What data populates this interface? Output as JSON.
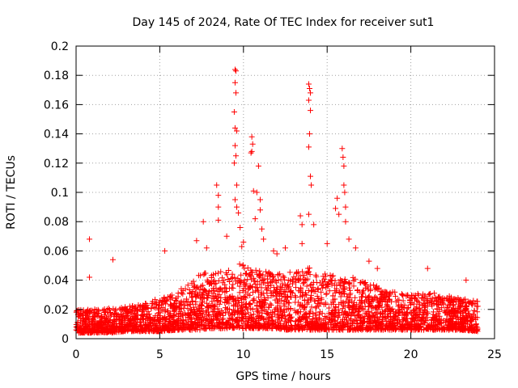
{
  "chart_data": {
    "type": "scatter",
    "title": "Day 145 of 2024, Rate Of TEC Index for receiver sut1",
    "xlabel": "GPS time / hours",
    "ylabel": "ROTI / TECUs",
    "xlim": [
      0,
      25
    ],
    "ylim": [
      0,
      0.2
    ],
    "xticks": [
      0,
      5,
      10,
      15,
      20,
      25
    ],
    "xtick_labels": [
      "0",
      "5",
      "10",
      "15",
      "20",
      "25"
    ],
    "yticks": [
      0,
      0.02,
      0.04,
      0.06,
      0.08,
      0.1,
      0.12,
      0.14,
      0.16,
      0.18,
      0.2
    ],
    "ytick_labels": [
      "0",
      "0.02",
      "0.04",
      "0.06",
      "0.08",
      "0.1",
      "0.12",
      "0.14",
      "0.16",
      "0.18",
      "0.2"
    ],
    "grid": true,
    "marker": "+",
    "series": [
      {
        "name": "sut1",
        "color": "#ff0000",
        "background_envelope": {
          "x": [
            0,
            1,
            2,
            3,
            4,
            5,
            6,
            7,
            7.5,
            8,
            8.5,
            9,
            9.5,
            10,
            10.5,
            11,
            11.5,
            12,
            12.5,
            13,
            13.5,
            14,
            14.5,
            15,
            15.5,
            16,
            16.5,
            17,
            17.5,
            18,
            19,
            20,
            21,
            22,
            23,
            24
          ],
          "lower": [
            0.004,
            0.004,
            0.004,
            0.005,
            0.005,
            0.005,
            0.006,
            0.006,
            0.006,
            0.007,
            0.007,
            0.007,
            0.007,
            0.007,
            0.007,
            0.007,
            0.007,
            0.007,
            0.006,
            0.006,
            0.006,
            0.006,
            0.006,
            0.006,
            0.006,
            0.006,
            0.006,
            0.006,
            0.006,
            0.006,
            0.006,
            0.006,
            0.006,
            0.006,
            0.006,
            0.005
          ],
          "upper": [
            0.02,
            0.02,
            0.021,
            0.022,
            0.024,
            0.028,
            0.033,
            0.04,
            0.045,
            0.046,
            0.046,
            0.046,
            0.05,
            0.052,
            0.05,
            0.048,
            0.046,
            0.044,
            0.045,
            0.046,
            0.046,
            0.05,
            0.045,
            0.044,
            0.043,
            0.044,
            0.042,
            0.04,
            0.038,
            0.036,
            0.032,
            0.03,
            0.032,
            0.03,
            0.028,
            0.026
          ]
        },
        "outliers": [
          {
            "x": 0.8,
            "y": 0.068
          },
          {
            "x": 0.8,
            "y": 0.042
          },
          {
            "x": 2.2,
            "y": 0.054
          },
          {
            "x": 5.3,
            "y": 0.06
          },
          {
            "x": 7.2,
            "y": 0.067
          },
          {
            "x": 7.6,
            "y": 0.08
          },
          {
            "x": 8.4,
            "y": 0.105
          },
          {
            "x": 8.5,
            "y": 0.098
          },
          {
            "x": 8.5,
            "y": 0.09
          },
          {
            "x": 8.5,
            "y": 0.081
          },
          {
            "x": 9.0,
            "y": 0.07
          },
          {
            "x": 9.5,
            "y": 0.184
          },
          {
            "x": 9.55,
            "y": 0.183
          },
          {
            "x": 9.5,
            "y": 0.175
          },
          {
            "x": 9.55,
            "y": 0.168
          },
          {
            "x": 9.45,
            "y": 0.155
          },
          {
            "x": 9.5,
            "y": 0.144
          },
          {
            "x": 9.6,
            "y": 0.142
          },
          {
            "x": 9.5,
            "y": 0.132
          },
          {
            "x": 9.55,
            "y": 0.125
          },
          {
            "x": 9.45,
            "y": 0.12
          },
          {
            "x": 9.6,
            "y": 0.105
          },
          {
            "x": 9.5,
            "y": 0.095
          },
          {
            "x": 9.6,
            "y": 0.09
          },
          {
            "x": 9.7,
            "y": 0.086
          },
          {
            "x": 9.8,
            "y": 0.076
          },
          {
            "x": 9.9,
            "y": 0.063
          },
          {
            "x": 10.5,
            "y": 0.138
          },
          {
            "x": 10.55,
            "y": 0.133
          },
          {
            "x": 10.5,
            "y": 0.128
          },
          {
            "x": 10.45,
            "y": 0.127
          },
          {
            "x": 10.9,
            "y": 0.118
          },
          {
            "x": 10.6,
            "y": 0.101
          },
          {
            "x": 10.8,
            "y": 0.1
          },
          {
            "x": 11.0,
            "y": 0.095
          },
          {
            "x": 11.0,
            "y": 0.088
          },
          {
            "x": 10.7,
            "y": 0.082
          },
          {
            "x": 11.1,
            "y": 0.075
          },
          {
            "x": 11.2,
            "y": 0.068
          },
          {
            "x": 13.9,
            "y": 0.174
          },
          {
            "x": 13.95,
            "y": 0.171
          },
          {
            "x": 14.0,
            "y": 0.168
          },
          {
            "x": 13.9,
            "y": 0.163
          },
          {
            "x": 14.0,
            "y": 0.156
          },
          {
            "x": 13.95,
            "y": 0.14
          },
          {
            "x": 13.9,
            "y": 0.131
          },
          {
            "x": 14.0,
            "y": 0.111
          },
          {
            "x": 14.05,
            "y": 0.105
          },
          {
            "x": 13.9,
            "y": 0.085
          },
          {
            "x": 13.4,
            "y": 0.084
          },
          {
            "x": 13.5,
            "y": 0.078
          },
          {
            "x": 14.2,
            "y": 0.078
          },
          {
            "x": 13.5,
            "y": 0.065
          },
          {
            "x": 15.0,
            "y": 0.065
          },
          {
            "x": 15.6,
            "y": 0.096
          },
          {
            "x": 15.5,
            "y": 0.089
          },
          {
            "x": 15.7,
            "y": 0.085
          },
          {
            "x": 15.9,
            "y": 0.13
          },
          {
            "x": 15.95,
            "y": 0.124
          },
          {
            "x": 16.0,
            "y": 0.118
          },
          {
            "x": 16.0,
            "y": 0.105
          },
          {
            "x": 16.05,
            "y": 0.1
          },
          {
            "x": 16.1,
            "y": 0.09
          },
          {
            "x": 16.1,
            "y": 0.08
          },
          {
            "x": 16.3,
            "y": 0.068
          },
          {
            "x": 16.7,
            "y": 0.062
          },
          {
            "x": 17.5,
            "y": 0.053
          },
          {
            "x": 18.0,
            "y": 0.048
          },
          {
            "x": 21.0,
            "y": 0.048
          },
          {
            "x": 23.3,
            "y": 0.04
          },
          {
            "x": 12.0,
            "y": 0.058
          },
          {
            "x": 12.5,
            "y": 0.062
          },
          {
            "x": 11.8,
            "y": 0.06
          },
          {
            "x": 10.0,
            "y": 0.066
          },
          {
            "x": 7.8,
            "y": 0.062
          }
        ]
      }
    ]
  }
}
